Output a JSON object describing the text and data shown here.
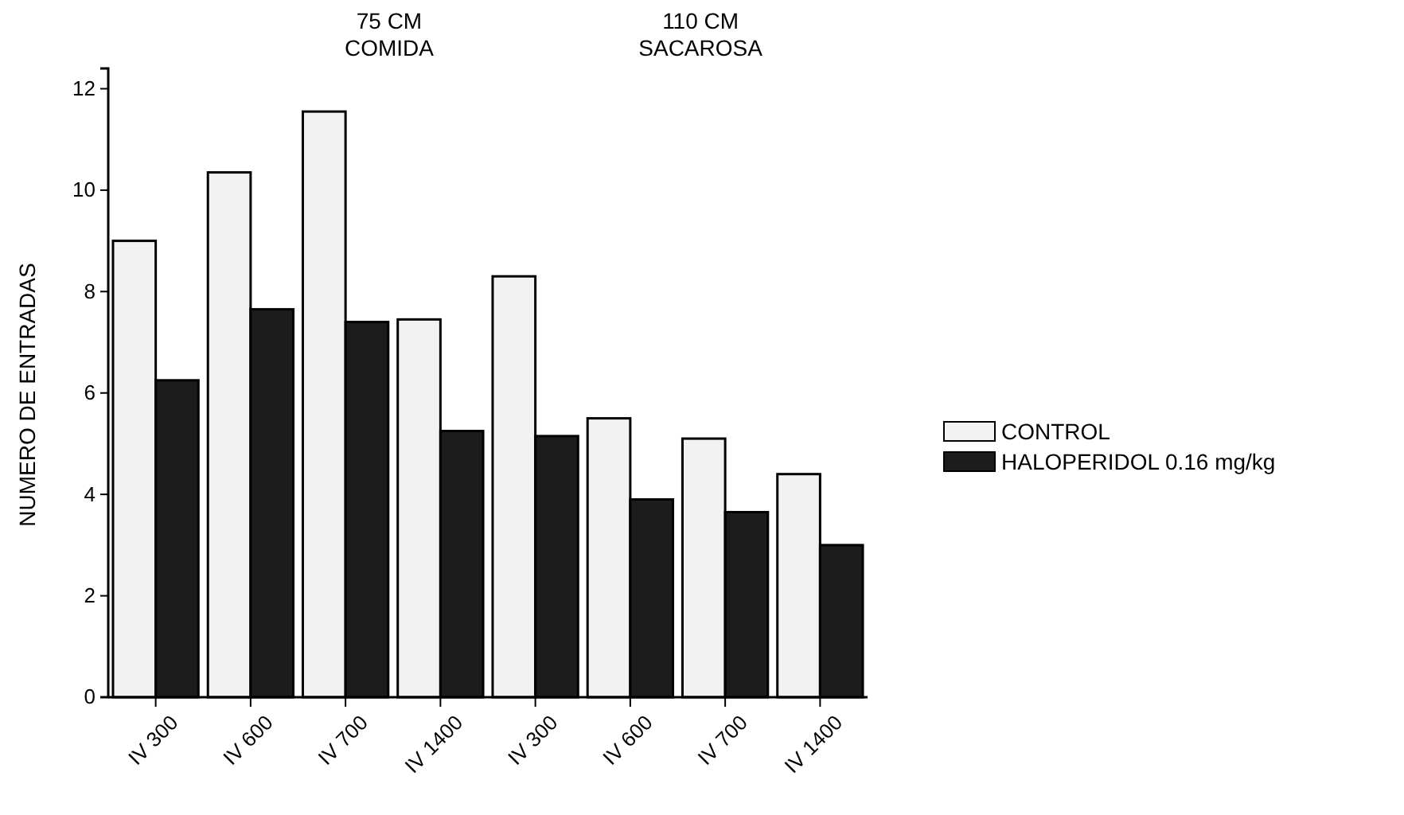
{
  "chart_data": {
    "type": "bar",
    "ylabel": "NUMERO  DE  ENTRADAS",
    "categories": [
      "IV 300",
      "IV 600",
      "IV 700",
      "IV 1400",
      "IV 300",
      "IV 600",
      "IV 700",
      "IV 1400"
    ],
    "series": [
      {
        "name": "CONTROL",
        "color": "#f2f2f2",
        "values": [
          9.0,
          10.35,
          11.55,
          7.45,
          8.3,
          5.5,
          5.1,
          4.4
        ]
      },
      {
        "name": "HALOPERIDOL 0.16 mg/kg",
        "color": "#1c1c1c",
        "values": [
          6.25,
          7.65,
          7.4,
          5.25,
          5.15,
          3.9,
          3.65,
          3.0
        ]
      }
    ],
    "ylim": [
      0,
      12.4
    ],
    "yticks": [
      0,
      2,
      4,
      6,
      8,
      10,
      12
    ],
    "grid": false,
    "legend": "right",
    "annotations": [
      "75 CM\nCOMIDA",
      "110 CM\nSACAROSA"
    ]
  }
}
